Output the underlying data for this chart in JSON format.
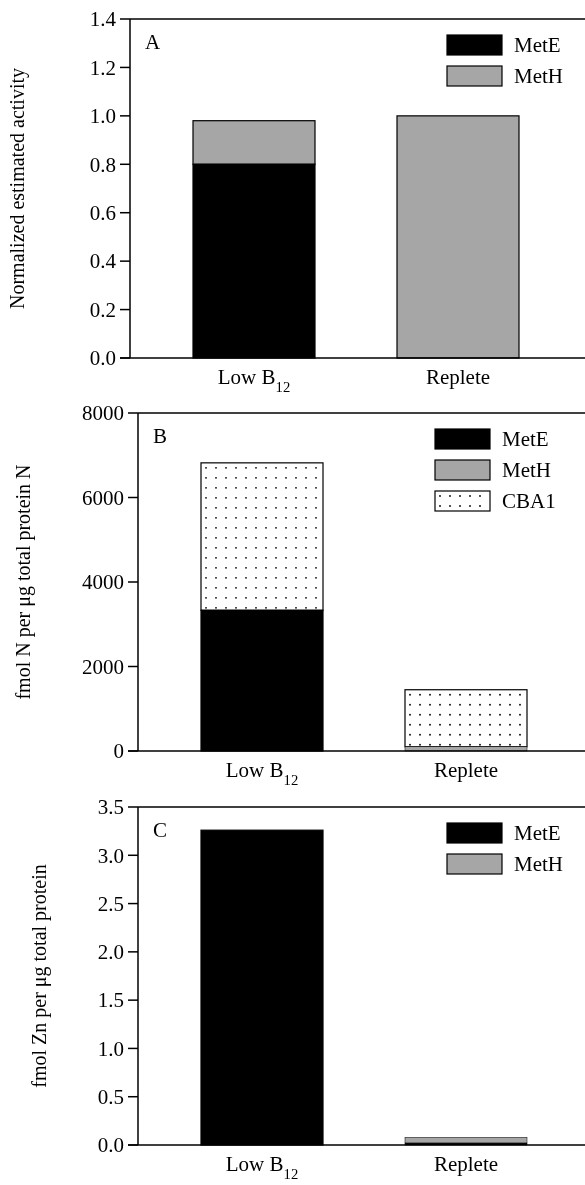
{
  "chart_data": [
    {
      "type": "bar",
      "stacked": true,
      "categories": [
        "Low B$_{12}$",
        "Replete"
      ],
      "ylabel": "Normalized estimated activity",
      "annotations": [
        "A"
      ],
      "ylim": [
        0,
        1.4
      ],
      "yticks": [
        {
          "value": 0,
          "label": "0.0"
        },
        0.2,
        0.4,
        0.6,
        0.8,
        {
          "value": 1,
          "label": "1.0"
        },
        1.2,
        1.4
      ],
      "legend": "top right",
      "series": [
        {
          "name": "MetE",
          "color": "#000000",
          "values": [
            0.8,
            0
          ]
        },
        {
          "name": "MetH",
          "color": "#a6a6a6",
          "values": [
            0.18,
            1.0
          ]
        }
      ]
    },
    {
      "type": "bar",
      "stacked": true,
      "categories": [
        "Low B$_{12}$",
        "Replete"
      ],
      "ylabel": "fmol N per μg total protein N",
      "annotations": [
        "B"
      ],
      "ylim": [
        0,
        8000
      ],
      "yticks": [
        0,
        2000,
        4000,
        6000,
        8000
      ],
      "legend": "top right",
      "series": [
        {
          "name": "MetE",
          "color": "#000000",
          "values": [
            3330,
            0
          ]
        },
        {
          "name": "MetH",
          "color": "#a6a6a6",
          "values": [
            0,
            100
          ]
        },
        {
          "name": "CBA1",
          "color": "#ffffff",
          "values": [
            3490,
            1350
          ]
        }
      ]
    },
    {
      "type": "bar",
      "stacked": true,
      "categories": [
        "Low B$_{12}$",
        "Replete"
      ],
      "ylabel": "fmol Zn per μg total protein",
      "annotations": [
        "C"
      ],
      "ylim": [
        0,
        3.5
      ],
      "yticks": [
        {
          "value": 0,
          "label": "0.0"
        },
        0.5,
        {
          "value": 1,
          "label": "1.0"
        },
        1.5,
        {
          "value": 2,
          "label": "2.0"
        },
        2.5,
        {
          "value": 3,
          "label": "3.0"
        },
        3.5
      ],
      "legend": "top right",
      "series": [
        {
          "name": "MetE",
          "color": "#000000",
          "values": [
            3.26,
            0.02
          ]
        },
        {
          "name": "MetH",
          "color": "#a6a6a6",
          "values": [
            0,
            0.06
          ]
        }
      ]
    }
  ]
}
